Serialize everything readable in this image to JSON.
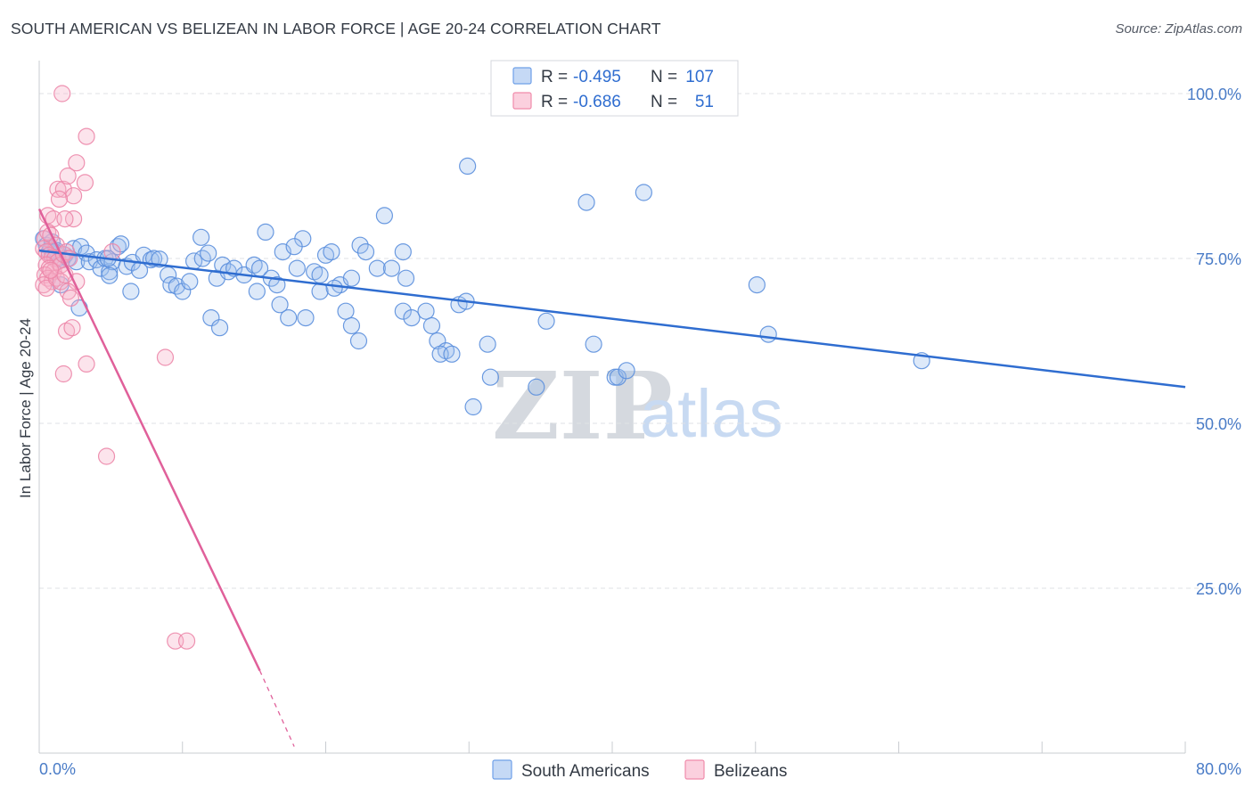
{
  "header": {
    "title": "SOUTH AMERICAN VS BELIZEAN IN LABOR FORCE | AGE 20-24 CORRELATION CHART",
    "source": "Source: ZipAtlas.com"
  },
  "watermark": {
    "zip": "ZIP",
    "atlas": "atlas"
  },
  "legend": {
    "r_label": "R =",
    "n_label": "N =",
    "rows": [
      {
        "r": "-0.495",
        "n": "107",
        "color": "#6fa0e8"
      },
      {
        "r": "-0.686",
        "n": "51",
        "color": "#f08bab"
      }
    ]
  },
  "chart_data": {
    "type": "scatter",
    "title": "SOUTH AMERICAN VS BELIZEAN IN LABOR FORCE | AGE 20-24 CORRELATION CHART",
    "xlabel": "",
    "ylabel": "In Labor Force | Age 20-24",
    "xlim": [
      0,
      80
    ],
    "ylim": [
      0,
      105
    ],
    "x_tick_labels": [
      "0.0%",
      "80.0%"
    ],
    "y_ticks": [
      25,
      50,
      75,
      100
    ],
    "y_tick_labels": [
      "25.0%",
      "50.0%",
      "75.0%",
      "100.0%"
    ],
    "grid": true,
    "legend_position": "top-center",
    "series": [
      {
        "name": "South Americans",
        "color": "#6fa0e8",
        "line_color": "#2f6dd0",
        "r": -0.495,
        "n": 107,
        "trend": {
          "x": [
            0,
            80
          ],
          "y": [
            76.2,
            55.5
          ]
        },
        "points": [
          [
            0.3,
            78
          ],
          [
            0.5,
            77
          ],
          [
            0.7,
            76
          ],
          [
            0.9,
            77.5
          ],
          [
            1.1,
            76
          ],
          [
            1.3,
            75
          ],
          [
            1.6,
            74.8
          ],
          [
            1.8,
            75.5
          ],
          [
            2.0,
            75
          ],
          [
            2.4,
            76.5
          ],
          [
            2.6,
            74.5
          ],
          [
            2.9,
            76.8
          ],
          [
            3.3,
            75.8
          ],
          [
            3.5,
            74.5
          ],
          [
            4.0,
            74.8
          ],
          [
            4.3,
            73.5
          ],
          [
            4.6,
            75
          ],
          [
            4.9,
            73
          ],
          [
            5.1,
            74.5
          ],
          [
            5.5,
            76.8
          ],
          [
            5.7,
            77.2
          ],
          [
            6.1,
            73.8
          ],
          [
            6.5,
            74.4
          ],
          [
            7.0,
            73.2
          ],
          [
            7.3,
            75.5
          ],
          [
            7.8,
            74.8
          ],
          [
            8.0,
            75
          ],
          [
            8.4,
            74.9
          ],
          [
            9.0,
            72.5
          ],
          [
            9.2,
            71
          ],
          [
            9.6,
            70.8
          ],
          [
            10.0,
            70
          ],
          [
            6.4,
            70
          ],
          [
            4.9,
            72.4
          ],
          [
            10.5,
            71.5
          ],
          [
            10.8,
            74.6
          ],
          [
            11.4,
            75
          ],
          [
            11.8,
            75.8
          ],
          [
            12.4,
            72
          ],
          [
            12.8,
            74
          ],
          [
            13.2,
            73
          ],
          [
            13.6,
            73.5
          ],
          [
            14.3,
            72.5
          ],
          [
            15.0,
            74
          ],
          [
            15.4,
            73.5
          ],
          [
            15.8,
            79
          ],
          [
            16.2,
            72
          ],
          [
            16.6,
            71
          ],
          [
            17.0,
            76
          ],
          [
            18.0,
            73.5
          ],
          [
            18.4,
            78
          ],
          [
            19.2,
            73
          ],
          [
            19.6,
            72.5
          ],
          [
            20.0,
            75.5
          ],
          [
            20.4,
            76
          ],
          [
            21.0,
            71
          ],
          [
            21.8,
            72
          ],
          [
            22.4,
            77
          ],
          [
            22.8,
            76
          ],
          [
            23.6,
            73.5
          ],
          [
            24.1,
            81.5
          ],
          [
            24.6,
            73.5
          ],
          [
            25.4,
            76
          ],
          [
            25.6,
            72
          ],
          [
            11.3,
            78.2
          ],
          [
            17.8,
            76.8
          ],
          [
            12.0,
            66
          ],
          [
            12.6,
            64.5
          ],
          [
            15.2,
            70
          ],
          [
            16.8,
            68
          ],
          [
            17.4,
            66
          ],
          [
            18.6,
            66
          ],
          [
            19.6,
            70
          ],
          [
            20.6,
            70.5
          ],
          [
            21.4,
            67
          ],
          [
            21.8,
            64.8
          ],
          [
            22.3,
            62.5
          ],
          [
            25.4,
            67
          ],
          [
            26.0,
            66
          ],
          [
            27.0,
            67
          ],
          [
            27.4,
            64.8
          ],
          [
            27.8,
            62.5
          ],
          [
            28.4,
            61
          ],
          [
            28.0,
            60.5
          ],
          [
            28.8,
            60.5
          ],
          [
            29.3,
            68
          ],
          [
            29.8,
            68.5
          ],
          [
            31.3,
            62
          ],
          [
            31.5,
            57
          ],
          [
            30.3,
            52.5
          ],
          [
            34.7,
            55.5
          ],
          [
            35.4,
            65.5
          ],
          [
            38.7,
            62
          ],
          [
            40.2,
            57
          ],
          [
            40.4,
            57
          ],
          [
            41.0,
            58
          ],
          [
            29.9,
            89
          ],
          [
            38.2,
            83.5
          ],
          [
            42.2,
            85
          ],
          [
            50.1,
            71
          ],
          [
            50.9,
            63.5
          ],
          [
            61.6,
            59.5
          ],
          [
            1.5,
            71
          ],
          [
            4.8,
            75
          ],
          [
            2.8,
            67.5
          ],
          [
            0.8,
            76.5
          ],
          [
            1.2,
            76.2
          ]
        ]
      },
      {
        "name": "Belizeans",
        "color": "#f08bab",
        "line_color": "#e0609a",
        "r": -0.686,
        "n": 51,
        "trend": {
          "x": [
            0,
            15.4
          ],
          "y": [
            82.5,
            12.5
          ]
        },
        "trend_dashed": {
          "x": [
            15.4,
            17.8
          ],
          "y": [
            12.5,
            1
          ]
        },
        "points": [
          [
            1.6,
            100
          ],
          [
            3.3,
            93.5
          ],
          [
            2.6,
            89.5
          ],
          [
            3.2,
            86.5
          ],
          [
            1.3,
            85.5
          ],
          [
            1.7,
            85.5
          ],
          [
            2.0,
            87.5
          ],
          [
            2.4,
            84.5
          ],
          [
            1.4,
            84
          ],
          [
            0.6,
            81.5
          ],
          [
            1.0,
            81
          ],
          [
            2.4,
            81
          ],
          [
            1.8,
            81
          ],
          [
            0.4,
            78
          ],
          [
            0.6,
            79
          ],
          [
            0.8,
            78.5
          ],
          [
            1.2,
            77
          ],
          [
            0.3,
            76.5
          ],
          [
            0.5,
            76
          ],
          [
            0.7,
            75.5
          ],
          [
            0.9,
            75.2
          ],
          [
            1.1,
            75
          ],
          [
            1.3,
            74.5
          ],
          [
            0.5,
            74
          ],
          [
            0.7,
            73.5
          ],
          [
            1.0,
            73
          ],
          [
            0.4,
            72.5
          ],
          [
            0.6,
            72
          ],
          [
            0.9,
            71.5
          ],
          [
            0.3,
            71
          ],
          [
            0.5,
            70.5
          ],
          [
            1.5,
            74
          ],
          [
            1.7,
            75.6
          ],
          [
            1.9,
            76
          ],
          [
            2.1,
            75
          ],
          [
            1.2,
            72
          ],
          [
            1.5,
            71.5
          ],
          [
            2.6,
            71.5
          ],
          [
            0.8,
            73.2
          ],
          [
            1.8,
            72.5
          ],
          [
            2.0,
            70
          ],
          [
            5.1,
            76
          ],
          [
            2.2,
            69
          ],
          [
            1.9,
            64
          ],
          [
            2.3,
            64.5
          ],
          [
            1.7,
            57.5
          ],
          [
            3.3,
            59
          ],
          [
            8.8,
            60
          ],
          [
            4.7,
            45
          ],
          [
            9.5,
            17
          ],
          [
            10.3,
            17
          ]
        ]
      }
    ]
  }
}
